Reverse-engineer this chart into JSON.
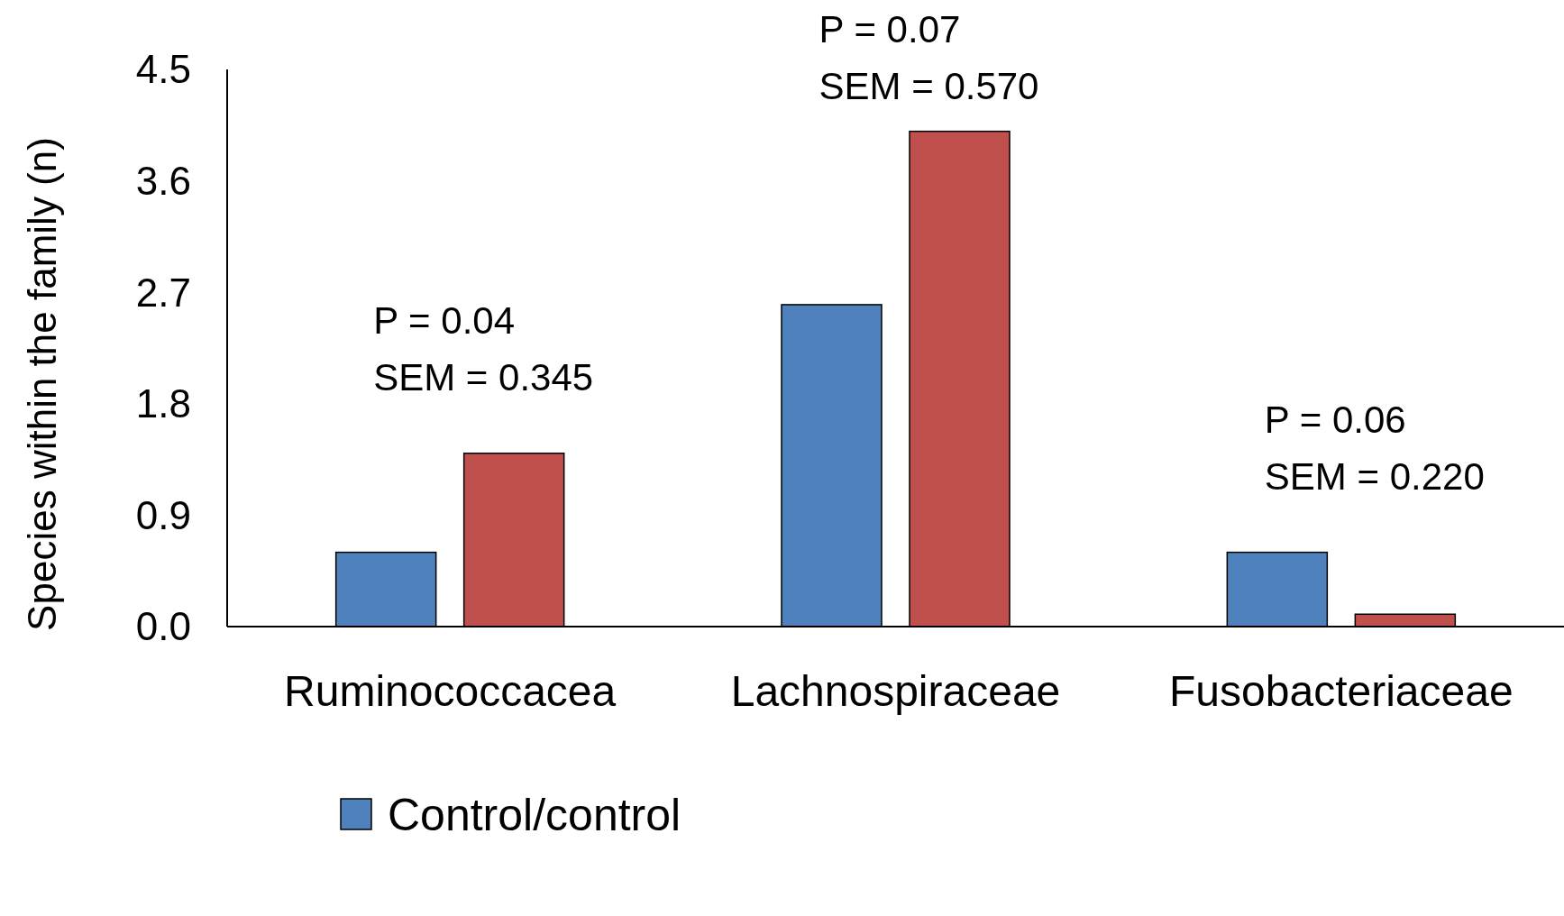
{
  "chart_data": {
    "type": "bar",
    "ylabel": "Species within the family (n)",
    "categories": [
      "Ruminococcacea",
      "Lachnospiraceae",
      "Fusobacteriaceae"
    ],
    "series": [
      {
        "name": "Control/control",
        "color": "#4f81bd",
        "values": [
          0.6,
          2.6,
          0.6
        ]
      },
      {
        "color": "#c0504d",
        "values": [
          1.4,
          4.0,
          0.1
        ]
      }
    ],
    "ylim": [
      0,
      4.5
    ],
    "yticks": [
      {
        "value": 0,
        "label": "0.0"
      },
      {
        "value": 0.9,
        "label": "0.9"
      },
      {
        "value": 1.8,
        "label": "1.8"
      },
      {
        "value": 2.7,
        "label": "2.7"
      },
      {
        "value": 3.6,
        "label": "3.6"
      },
      {
        "value": 4.5,
        "label": "4.5"
      }
    ],
    "annotations": [
      "P = 0.04\nSEM = 0.345",
      "P = 0.07\nSEM = 0.570",
      "P = 0.06\nSEM = 0.220"
    ],
    "grid": false,
    "legend": "bottom"
  }
}
